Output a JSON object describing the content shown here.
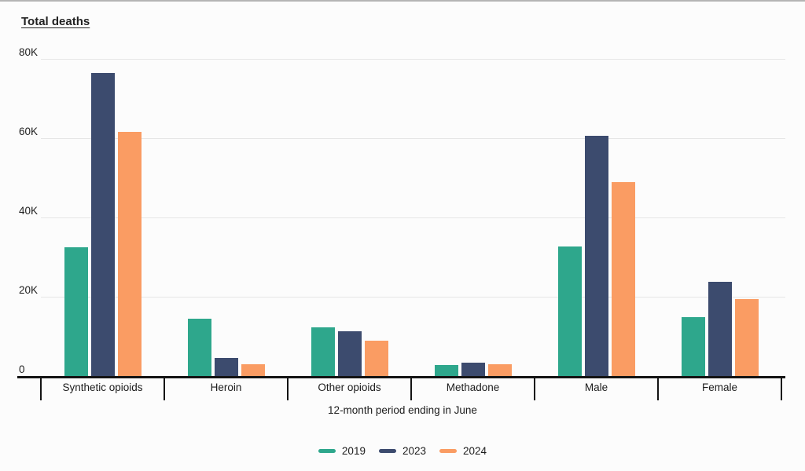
{
  "page": {
    "background": "#fcfcfc"
  },
  "chart_data": {
    "type": "bar",
    "title": "Total deaths",
    "xlabel": "12-month period ending in June",
    "ylabel": "Total deaths",
    "categories": [
      "Synthetic opioids",
      "Heroin",
      "Other opioids",
      "Methadone",
      "Male",
      "Female"
    ],
    "series": [
      {
        "name": "2019",
        "color": "#2ea78c",
        "values": [
          32500,
          14500,
          12200,
          2800,
          32700,
          14800
        ]
      },
      {
        "name": "2023",
        "color": "#3c4b6e",
        "values": [
          76500,
          4600,
          11200,
          3400,
          60500,
          23700
        ]
      },
      {
        "name": "2024",
        "color": "#fa9c63",
        "values": [
          61500,
          3000,
          9000,
          3000,
          49000,
          19500
        ]
      }
    ],
    "ylim": [
      0,
      80000
    ],
    "yticks": [
      {
        "value": 80000,
        "label": "80K"
      },
      {
        "value": 60000,
        "label": "60K"
      },
      {
        "value": 40000,
        "label": "40K"
      },
      {
        "value": 20000,
        "label": "20K"
      },
      {
        "value": 0,
        "label": "0"
      }
    ],
    "grid": true,
    "legend_position": "bottom",
    "legend": [
      "2019",
      "2023",
      "2024"
    ]
  }
}
